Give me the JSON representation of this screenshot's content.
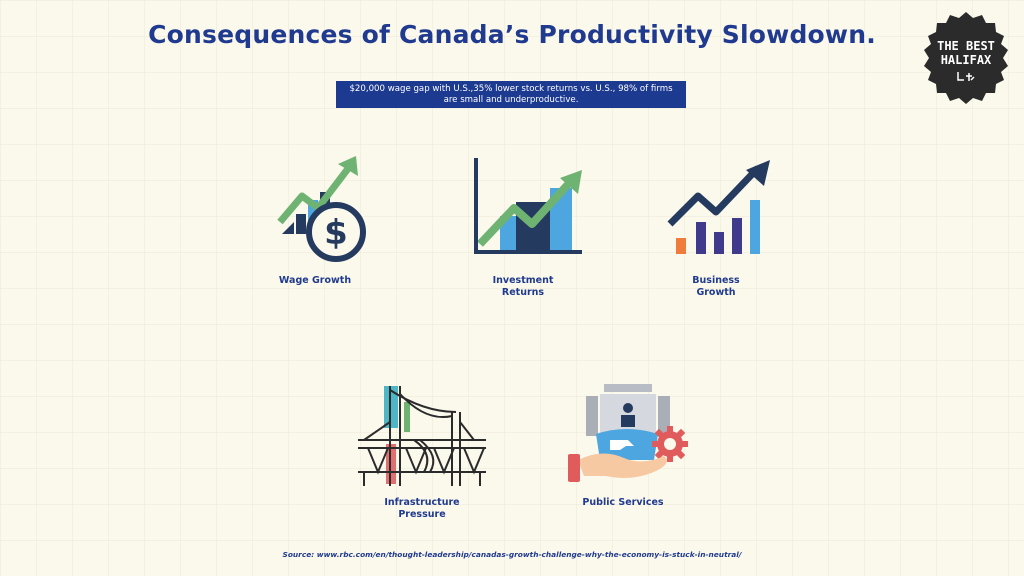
{
  "title": "Consequences of Canada’s Productivity Slowdown.",
  "subtitle": "$20,000 wage gap with U.S.,35% lower stock returns vs. U.S., 98% of firms are small and underproductive.",
  "badge": {
    "line1": "THE BEST",
    "line2": "HALIFAX"
  },
  "items": [
    {
      "label": "Wage Growth",
      "icon": "wage-growth-icon"
    },
    {
      "label": "Investment\nReturns",
      "icon": "investment-returns-icon"
    },
    {
      "label": "Business\nGrowth",
      "icon": "business-growth-icon"
    },
    {
      "label": "Infrastructure\nPressure",
      "icon": "infrastructure-bridge-icon"
    },
    {
      "label": "Public Services",
      "icon": "public-services-icon"
    }
  ],
  "source": "Source: www.rbc.com/en/thought-leadership/canadas-growth-challenge-why-the-economy-is-stuck-in-neutral/",
  "colors": {
    "background": "#fbf8ec",
    "title": "#1f3a8f",
    "box": "#1d3a91",
    "green": "#6fb372",
    "navy": "#243a5e",
    "blue": "#4da6e0",
    "purple": "#3f3a8c",
    "orange": "#f07c3c",
    "red": "#e05b5b"
  }
}
